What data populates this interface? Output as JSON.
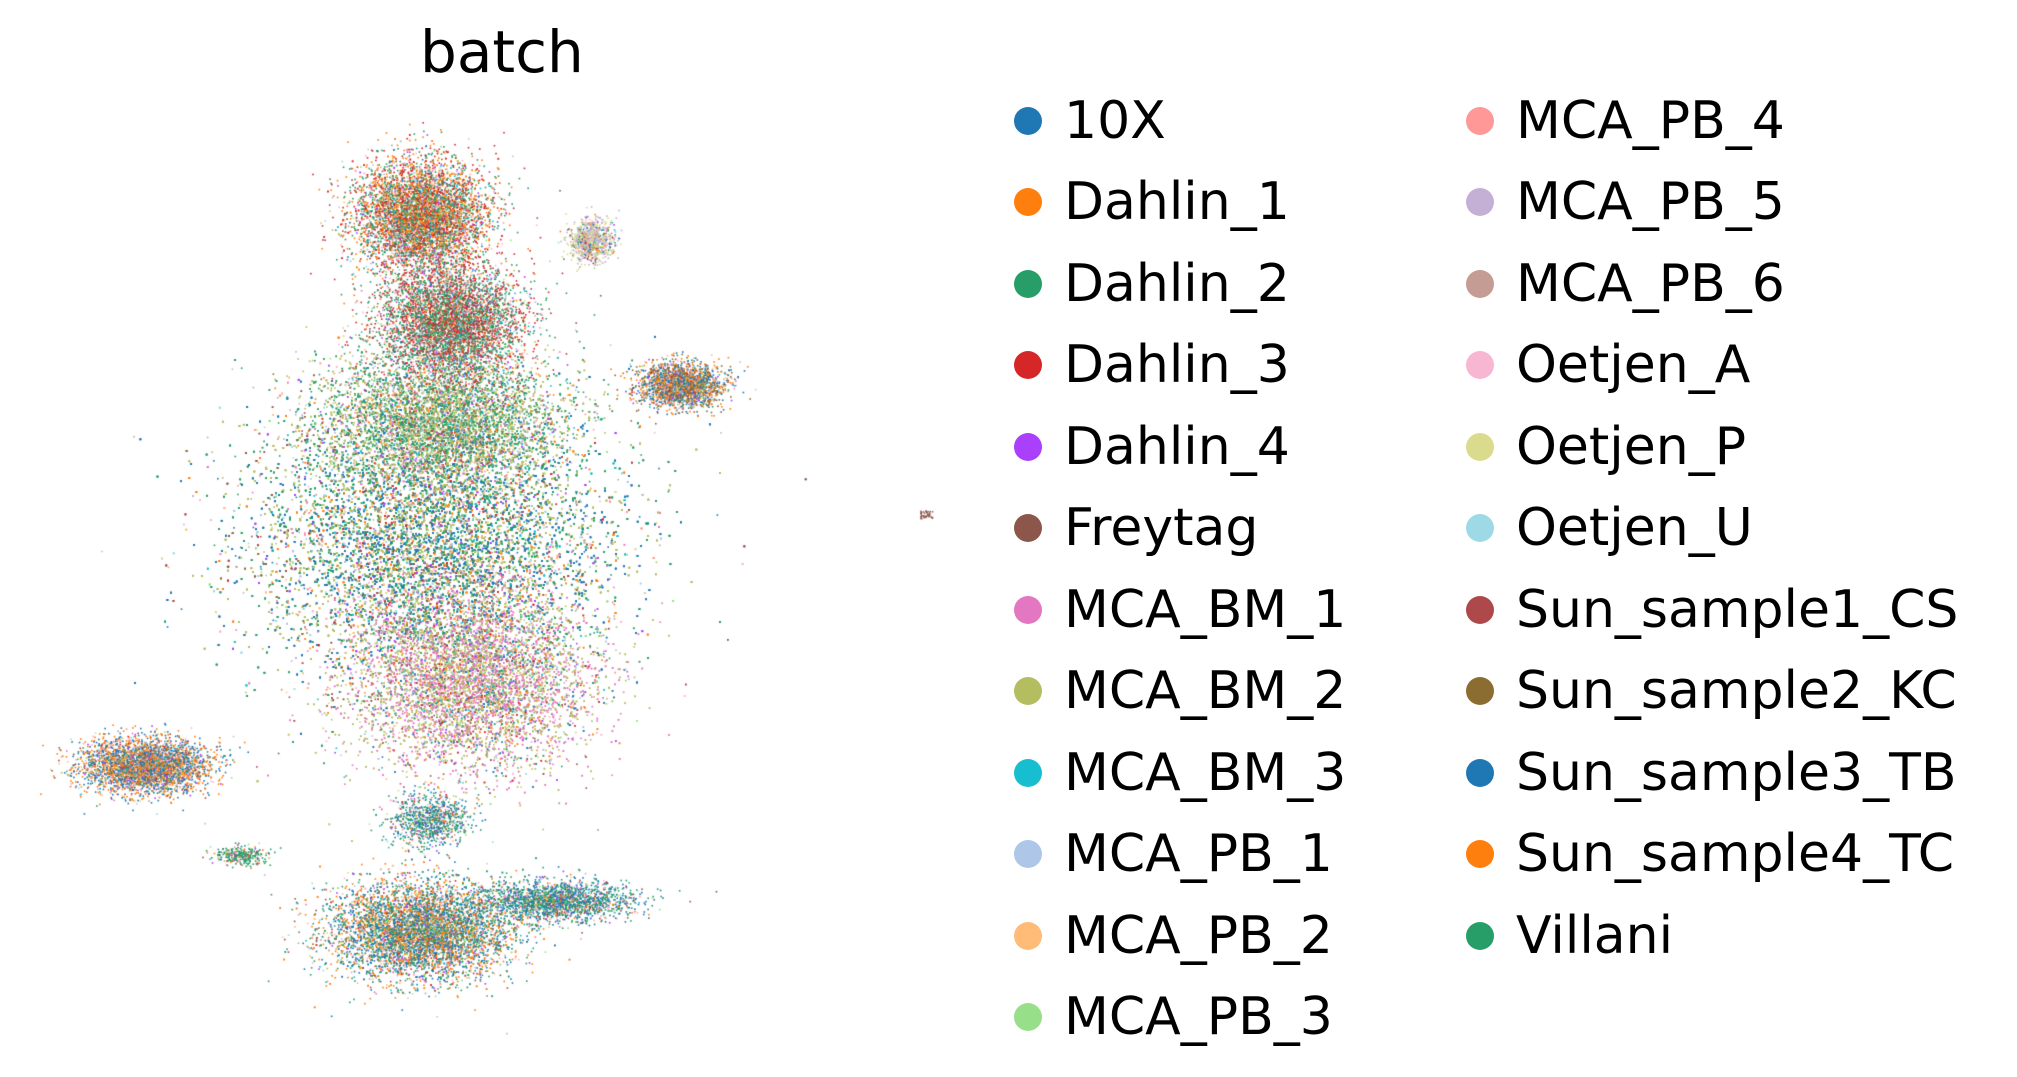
{
  "chart_data": {
    "type": "scatter",
    "title": "batch",
    "xlabel": "",
    "ylabel": "",
    "grid": false,
    "axes_visible": false,
    "legend_placement": "right",
    "legend_columns": 2,
    "series": [
      {
        "name": "10X",
        "color": "#1f77b4"
      },
      {
        "name": "Dahlin_1",
        "color": "#ff7f0e"
      },
      {
        "name": "Dahlin_2",
        "color": "#279e68"
      },
      {
        "name": "Dahlin_3",
        "color": "#d62728"
      },
      {
        "name": "Dahlin_4",
        "color": "#aa40fc"
      },
      {
        "name": "Freytag",
        "color": "#8c564b"
      },
      {
        "name": "MCA_BM_1",
        "color": "#e377c2"
      },
      {
        "name": "MCA_BM_2",
        "color": "#b5bd61"
      },
      {
        "name": "MCA_BM_3",
        "color": "#17becf"
      },
      {
        "name": "MCA_PB_1",
        "color": "#aec7e8"
      },
      {
        "name": "MCA_PB_2",
        "color": "#ffbb78"
      },
      {
        "name": "MCA_PB_3",
        "color": "#98df8a"
      },
      {
        "name": "MCA_PB_4",
        "color": "#ff9896"
      },
      {
        "name": "MCA_PB_5",
        "color": "#c5b0d5"
      },
      {
        "name": "MCA_PB_6",
        "color": "#c49c94"
      },
      {
        "name": "Oetjen_A",
        "color": "#f7b6d2"
      },
      {
        "name": "Oetjen_P",
        "color": "#dbdb8d"
      },
      {
        "name": "Oetjen_U",
        "color": "#9edae5"
      },
      {
        "name": "Sun_sample1_CS",
        "color": "#ad494a"
      },
      {
        "name": "Sun_sample2_KC",
        "color": "#8c6d31"
      },
      {
        "name": "Sun_sample3_TB",
        "color": "#1f77b4"
      },
      {
        "name": "Sun_sample4_TC",
        "color": "#ff7f0e"
      },
      {
        "name": "Villani",
        "color": "#279e68"
      }
    ]
  }
}
